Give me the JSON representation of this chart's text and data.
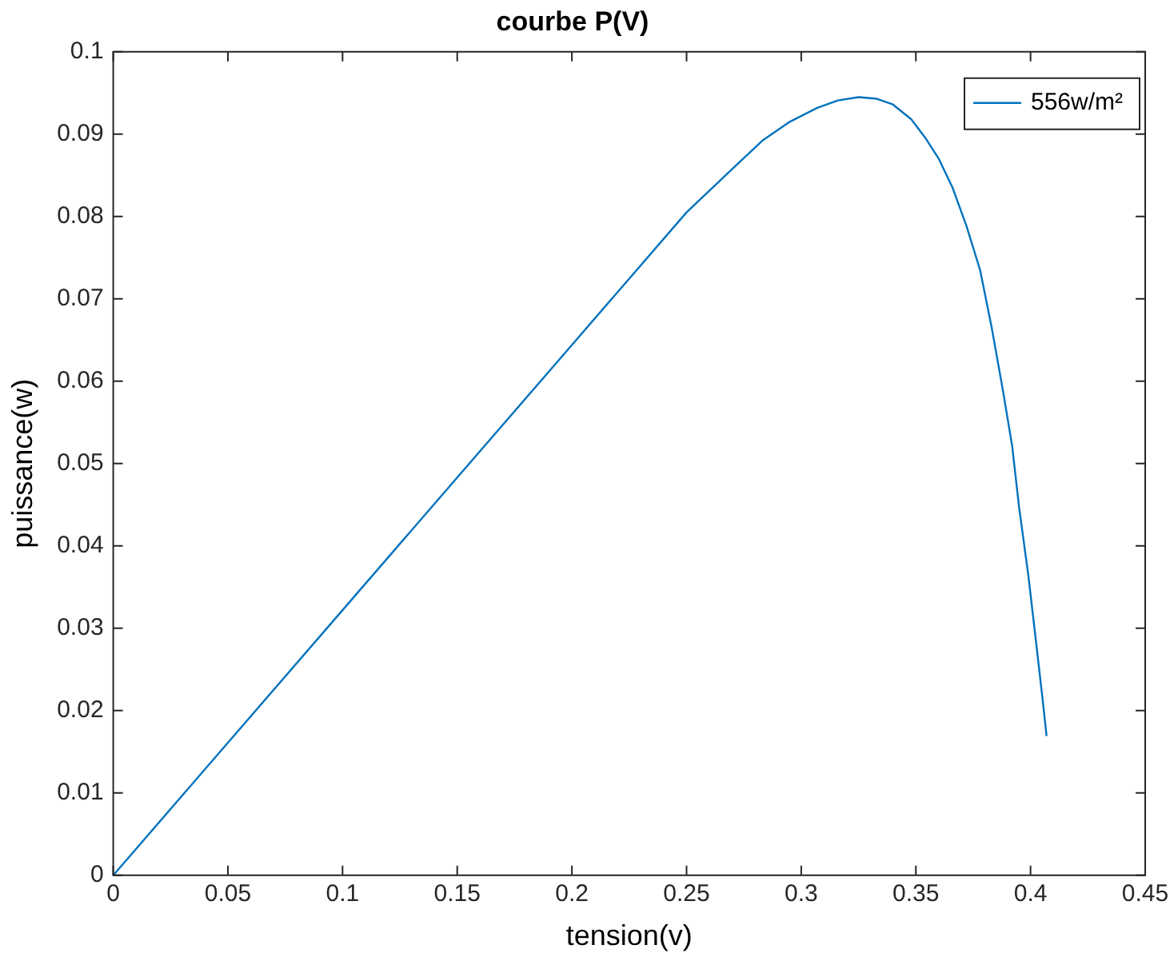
{
  "chart_data": {
    "type": "line",
    "title": "courbe P(V)",
    "xlabel": "tension(v)",
    "ylabel": "puissance(w)",
    "xlim": [
      0,
      0.45
    ],
    "xticks": [
      0,
      0.05,
      0.1,
      0.15,
      0.2,
      0.25,
      0.3,
      0.35,
      0.4,
      0.45
    ],
    "ylim": [
      0,
      0.1
    ],
    "yticks": [
      0,
      0.01,
      0.02,
      0.03,
      0.04,
      0.05,
      0.06,
      0.07,
      0.08,
      0.09,
      0.1
    ],
    "grid": false,
    "legend": "top right",
    "marker": "none",
    "line_style": "solid",
    "series": [
      {
        "name": "556w/m²",
        "color": "#0072bd",
        "x": [
          0,
          0.05,
          0.1,
          0.15,
          0.2,
          0.25,
          0.27,
          0.283,
          0.295,
          0.307,
          0.316,
          0.325,
          0.333,
          0.34,
          0.348,
          0.354,
          0.36,
          0.366,
          0.372,
          0.378,
          0.383,
          0.388,
          0.392,
          0.395,
          0.399,
          0.402,
          0.405,
          0.407
        ],
        "values": [
          0,
          0.0161,
          0.0322,
          0.0483,
          0.0644,
          0.0805,
          0.0858,
          0.0892,
          0.0915,
          0.0932,
          0.0941,
          0.0945,
          0.0943,
          0.0936,
          0.0918,
          0.0896,
          0.087,
          0.0835,
          0.0789,
          0.0735,
          0.0666,
          0.0588,
          0.0521,
          0.0447,
          0.0365,
          0.0293,
          0.022,
          0.0169
        ]
      }
    ]
  }
}
